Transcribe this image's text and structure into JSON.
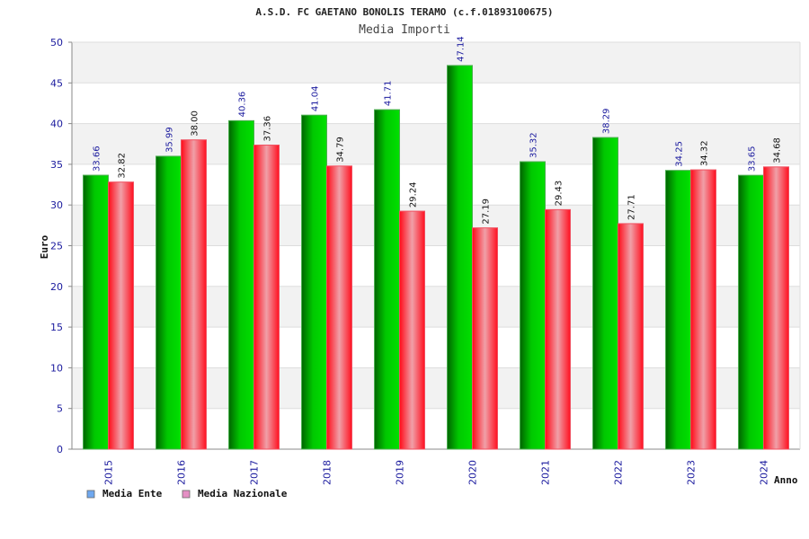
{
  "chart_data": {
    "type": "bar",
    "title": "A.S.D. FC GAETANO BONOLIS TERAMO (c.f.01893100675)",
    "subtitle": "Media Importi",
    "xlabel": "Anno",
    "ylabel": "Euro",
    "ylim": [
      0,
      50
    ],
    "yticks": [
      0,
      5,
      10,
      15,
      20,
      25,
      30,
      35,
      40,
      45,
      50
    ],
    "grid": true,
    "legend_position": "bottom-left",
    "categories": [
      "2015",
      "2016",
      "2017",
      "2018",
      "2019",
      "2020",
      "2021",
      "2022",
      "2023",
      "2024"
    ],
    "series": [
      {
        "name": "Media Ente",
        "values": [
          33.66,
          35.99,
          40.36,
          41.04,
          41.71,
          47.14,
          35.32,
          38.29,
          34.25,
          33.65
        ],
        "labels": [
          "33.66",
          "35.99",
          "40.36",
          "41.04",
          "41.71",
          "47.14",
          "35.32",
          "38.29",
          "34.25",
          "33.65"
        ],
        "color": "#00b000",
        "label_color": "#1a1a9e",
        "legend_color": "#6fa8f0"
      },
      {
        "name": "Media Nazionale",
        "values": [
          32.82,
          38.0,
          37.36,
          34.79,
          29.24,
          27.19,
          29.43,
          27.71,
          34.32,
          34.68
        ],
        "labels": [
          "32.82",
          "38.00",
          "37.36",
          "34.79",
          "29.24",
          "27.19",
          "29.43",
          "27.71",
          "34.32",
          "34.68"
        ],
        "color": "#ff1a2a",
        "label_color": "#111111",
        "legend_color": "#e58fc4"
      }
    ]
  }
}
